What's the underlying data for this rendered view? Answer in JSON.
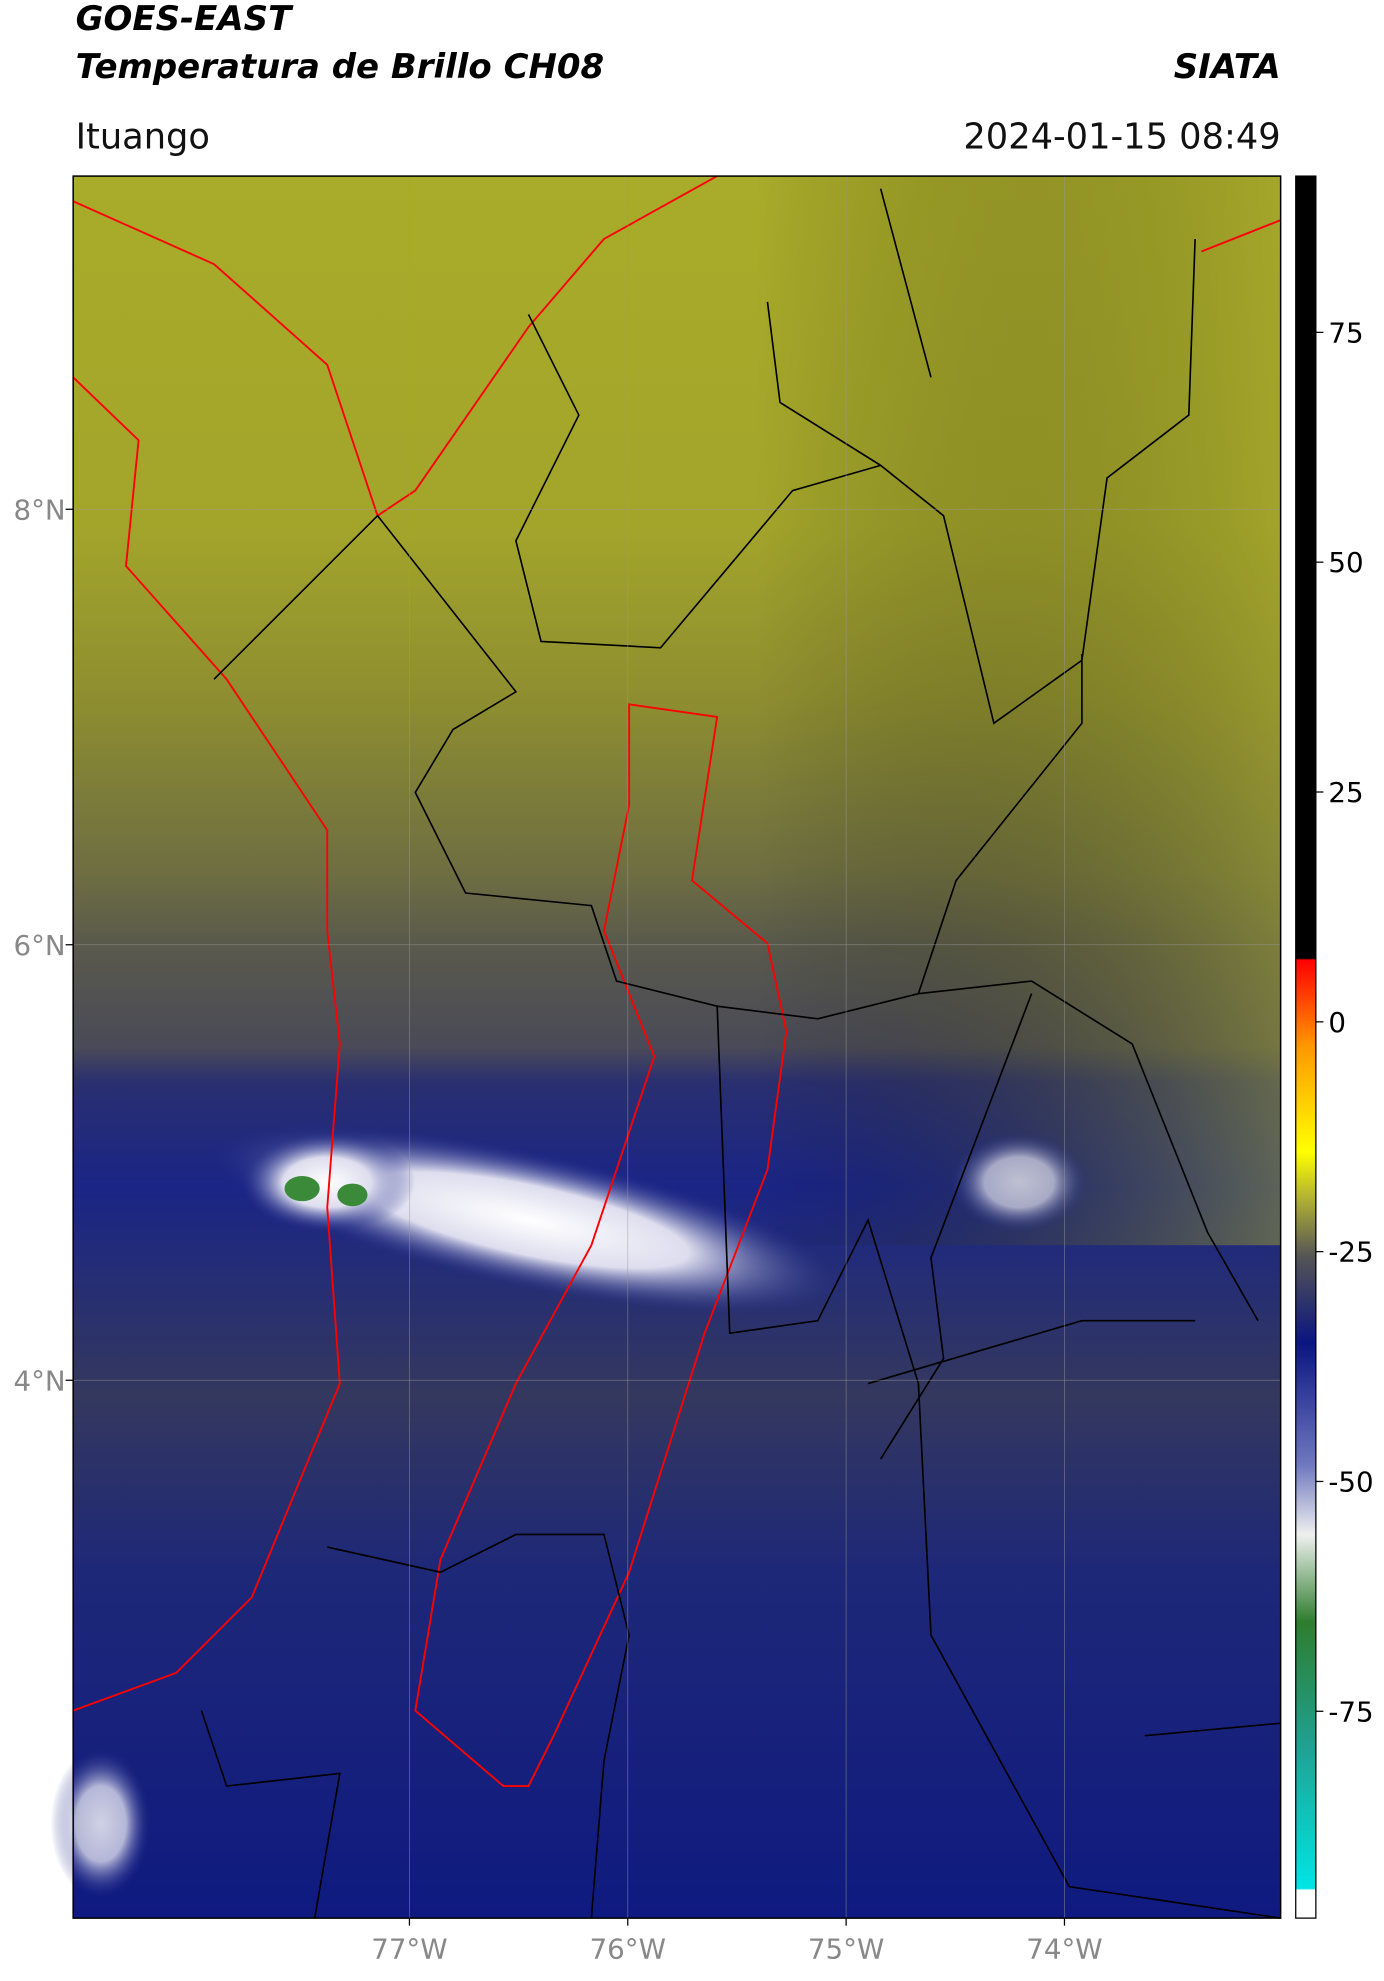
{
  "header": {
    "title_line1": "GOES-EAST",
    "title_line2": "Temperatura de Brillo CH08",
    "brand": "SIATA",
    "location": "Ituango",
    "datetime": "2024-01-15 08:49"
  },
  "map": {
    "xlim": [
      -78.54,
      -73.01
    ],
    "ylim": [
      1.53,
      9.53
    ],
    "xticks": [
      {
        "value": -77,
        "label": "77°W"
      },
      {
        "value": -76,
        "label": "76°W"
      },
      {
        "value": -75,
        "label": "75°W"
      },
      {
        "value": -74,
        "label": "74°W"
      }
    ],
    "yticks": [
      {
        "value": 8,
        "label": "8°N"
      },
      {
        "value": 6,
        "label": "6°N"
      },
      {
        "value": 4,
        "label": "4°N"
      }
    ],
    "grid": true
  },
  "colorbar": {
    "lim": [
      -97.5,
      92
    ],
    "ticks": [
      75,
      50,
      25,
      0,
      -25,
      -50,
      -75
    ]
  }
}
